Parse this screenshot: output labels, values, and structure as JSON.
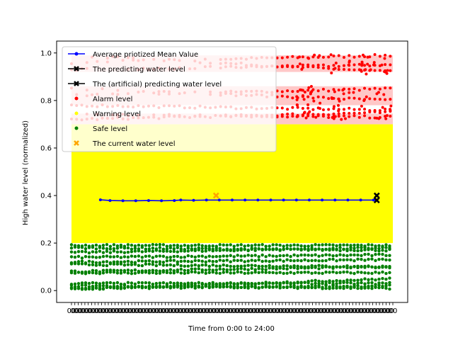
{
  "chart_data": {
    "type": "scatter",
    "title": "",
    "xlabel": "Time from 0:00 to 24:00",
    "ylabel": "High water level (normalized)",
    "xlim": [
      0,
      100
    ],
    "ylim": [
      -0.05,
      1.05
    ],
    "yticks": [
      0.0,
      0.2,
      0.4,
      0.6,
      0.8,
      1.0
    ],
    "ytick_labels": [
      "0.0",
      "0.2",
      "0.4",
      "0.6",
      "0.8",
      "1.0"
    ],
    "xtick_note": "dense overlapping time labels from 0:00 to 24:00",
    "grid": false,
    "legend_position": "top-left",
    "colors": {
      "mean": "#0000ff",
      "prediction": "#000000",
      "alarm": "#ff0000",
      "alarm_band": "#ffc8c8",
      "warning": "#ffff00",
      "safe": "#008000",
      "current": "#ffa500"
    },
    "series": [
      {
        "name": "Average priotized Mean Value",
        "kind": "line-marker",
        "color": "#0000ff",
        "x": [
          9,
          12,
          16,
          20,
          24,
          28,
          32,
          34,
          38,
          42,
          46,
          50,
          54,
          58,
          62,
          66,
          70,
          74,
          78,
          82,
          86,
          90,
          94,
          95
        ],
        "y": [
          0.382,
          0.379,
          0.378,
          0.378,
          0.379,
          0.378,
          0.379,
          0.381,
          0.38,
          0.381,
          0.381,
          0.381,
          0.381,
          0.381,
          0.381,
          0.381,
          0.381,
          0.381,
          0.381,
          0.381,
          0.381,
          0.381,
          0.381,
          0.381
        ]
      },
      {
        "name": "The predicting water level",
        "kind": "line-x",
        "color": "#000000",
        "x": [
          95
        ],
        "y": [
          0.4
        ]
      },
      {
        "name": "The (artificial) predicting water level",
        "kind": "line-x",
        "color": "#000000",
        "x": [
          95
        ],
        "y": [
          0.38
        ]
      },
      {
        "name": "Alarm level",
        "kind": "scatter",
        "color": "#ff0000",
        "range": [
          0.7,
          1.0
        ]
      },
      {
        "name": "Warning level",
        "kind": "scatter",
        "color": "#ffff00",
        "range": [
          0.2,
          0.7
        ]
      },
      {
        "name": "Safe level",
        "kind": "scatter",
        "color": "#008000",
        "range": [
          0.0,
          0.2
        ]
      },
      {
        "name": "The current water level",
        "kind": "marker-x",
        "color": "#ffa500",
        "x": [
          45
        ],
        "y": [
          0.4
        ]
      }
    ]
  }
}
